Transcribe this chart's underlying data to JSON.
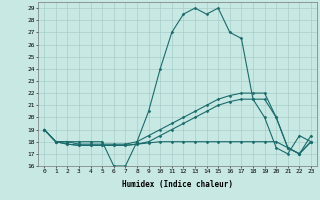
{
  "xlabel": "Humidex (Indice chaleur)",
  "xlim": [
    -0.5,
    23.5
  ],
  "ylim": [
    16,
    29.5
  ],
  "yticks": [
    16,
    17,
    18,
    19,
    20,
    21,
    22,
    23,
    24,
    25,
    26,
    27,
    28,
    29
  ],
  "xticks": [
    0,
    1,
    2,
    3,
    4,
    5,
    6,
    7,
    8,
    9,
    10,
    11,
    12,
    13,
    14,
    15,
    16,
    17,
    18,
    19,
    20,
    21,
    22,
    23
  ],
  "bg_color": "#c8e8e4",
  "line_color": "#1a6b6b",
  "grid_color": "#a0c8c4",
  "lines": [
    {
      "x": [
        0,
        1,
        2,
        3,
        4,
        5,
        6,
        7,
        8,
        9,
        10,
        11,
        12,
        13,
        14,
        15,
        16,
        17,
        18,
        19,
        20,
        21,
        22,
        23
      ],
      "y": [
        19,
        18,
        18,
        18,
        18,
        18,
        16,
        16,
        18,
        20.5,
        24,
        27,
        28.5,
        29,
        28.5,
        29,
        27,
        26.5,
        21.5,
        20,
        17.5,
        17,
        18.5,
        18
      ]
    },
    {
      "x": [
        0,
        1,
        2,
        3,
        4,
        5,
        6,
        7,
        8,
        9,
        10,
        11,
        12,
        13,
        14,
        15,
        16,
        17,
        18,
        19,
        20,
        21,
        22,
        23
      ],
      "y": [
        19,
        18,
        18,
        17.8,
        17.8,
        17.8,
        17.8,
        17.8,
        18,
        18.5,
        19,
        19.5,
        20,
        20.5,
        21,
        21.5,
        21.8,
        22,
        22,
        22,
        20,
        17.5,
        17,
        18.5
      ]
    },
    {
      "x": [
        0,
        1,
        2,
        3,
        4,
        5,
        6,
        7,
        8,
        9,
        10,
        11,
        12,
        13,
        14,
        15,
        16,
        17,
        18,
        19,
        20,
        21,
        22,
        23
      ],
      "y": [
        19,
        18,
        17.8,
        17.7,
        17.7,
        17.7,
        17.7,
        17.7,
        17.8,
        18,
        18.5,
        19,
        19.5,
        20,
        20.5,
        21,
        21.3,
        21.5,
        21.5,
        21.5,
        20,
        17.5,
        17,
        18
      ]
    },
    {
      "x": [
        0,
        1,
        2,
        3,
        4,
        5,
        6,
        7,
        8,
        9,
        10,
        11,
        12,
        13,
        14,
        15,
        16,
        17,
        18,
        19,
        20,
        21,
        22,
        23
      ],
      "y": [
        19,
        18,
        17.8,
        17.7,
        17.7,
        17.7,
        17.7,
        17.7,
        17.8,
        17.9,
        18,
        18,
        18,
        18,
        18,
        18,
        18,
        18,
        18,
        18,
        18,
        17.5,
        17,
        18
      ]
    }
  ]
}
